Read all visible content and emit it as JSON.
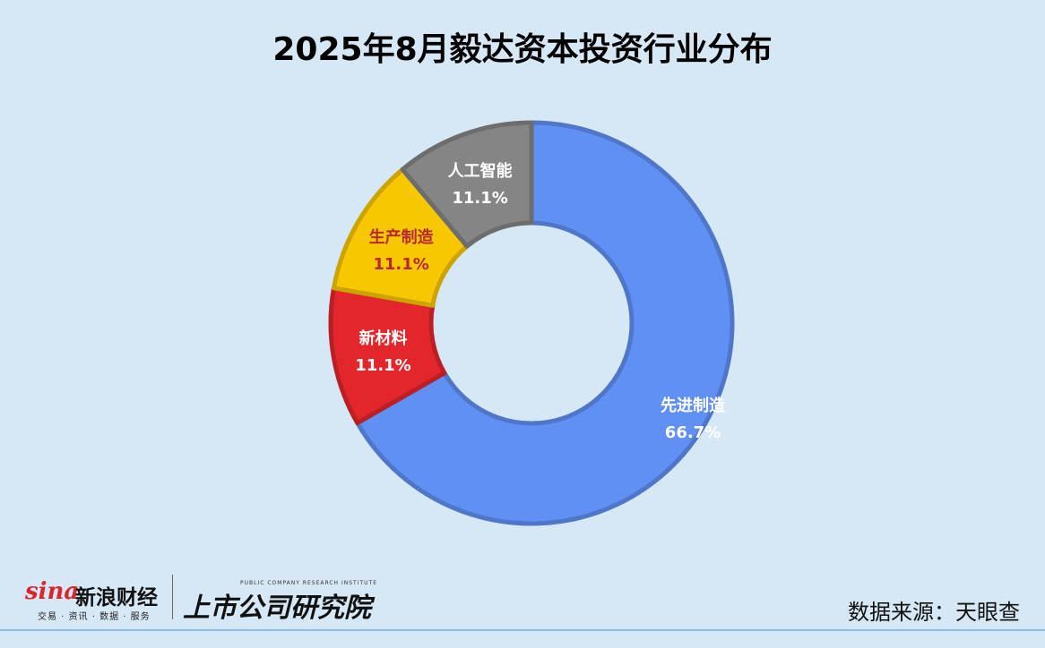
{
  "chart_data": {
    "type": "pie",
    "variant": "donut",
    "title": "2025年8月毅达资本投资行业分布",
    "slices": [
      {
        "label": "先进制造",
        "value": 66.7,
        "display": "66.7%",
        "color": "#6190f4"
      },
      {
        "label": "新材料",
        "value": 11.1,
        "display": "11.1%",
        "color": "#e3262b"
      },
      {
        "label": "生产制造",
        "value": 11.1,
        "display": "11.1%",
        "color": "#f7c800"
      },
      {
        "label": "人工智能",
        "value": 11.1,
        "display": "11.1%",
        "color": "#858585"
      }
    ],
    "start": "12 o'clock",
    "direction": "clockwise",
    "label_colors": {
      "先进制造": "#ffffff",
      "新材料": "#ffffff",
      "生产制造": "#b8292f",
      "人工智能": "#ffffff"
    }
  },
  "footer": {
    "brand_wordmark": "sina",
    "brand_name": "新浪财经",
    "brand_sub": "交易 · 资讯 · 数据 · 服务",
    "institute_en": "PUBLIC COMPANY RESEARCH INSTITUTE",
    "institute_cn": "上市公司研究院",
    "source": "数据来源：天眼查"
  },
  "colors": {
    "background": "#d6e8f5"
  }
}
